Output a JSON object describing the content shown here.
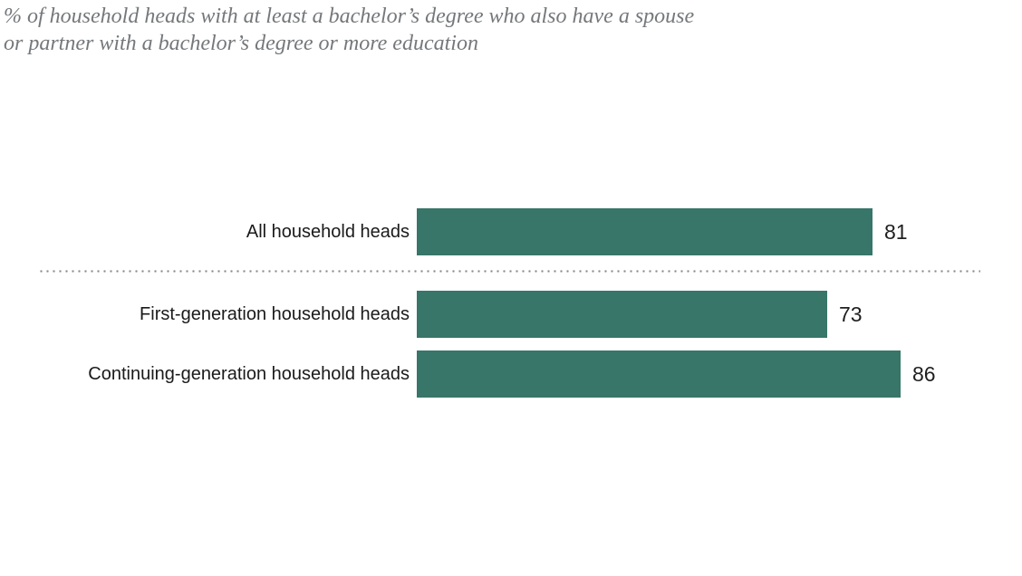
{
  "title": {
    "line1": "% of household heads with at least a bachelor’s degree who also have a spouse",
    "line2": "or partner with a bachelor’s degree or more education"
  },
  "colors": {
    "bar": "#377668",
    "subtitle_text": "#75787b",
    "category_text": "#1a1a1a",
    "value_text": "#1f1f1f",
    "divider_dots": "#8a8a8a",
    "background": "#ffffff"
  },
  "chart_data": {
    "type": "bar",
    "orientation": "horizontal",
    "title": "% of household heads with at least a bachelor’s degree who also have a spouse or partner with a bachelor’s degree or more education",
    "categories": [
      "All household heads",
      "First-generation household heads",
      "Continuing-generation household heads"
    ],
    "values": [
      81,
      73,
      86
    ],
    "value_labels": [
      "81",
      "73",
      "86"
    ],
    "xlim": [
      0,
      100
    ],
    "xlabel": "",
    "ylabel": "",
    "grid": false,
    "legend": "none",
    "bar_color": "#377668",
    "divider_after_index": 0
  }
}
